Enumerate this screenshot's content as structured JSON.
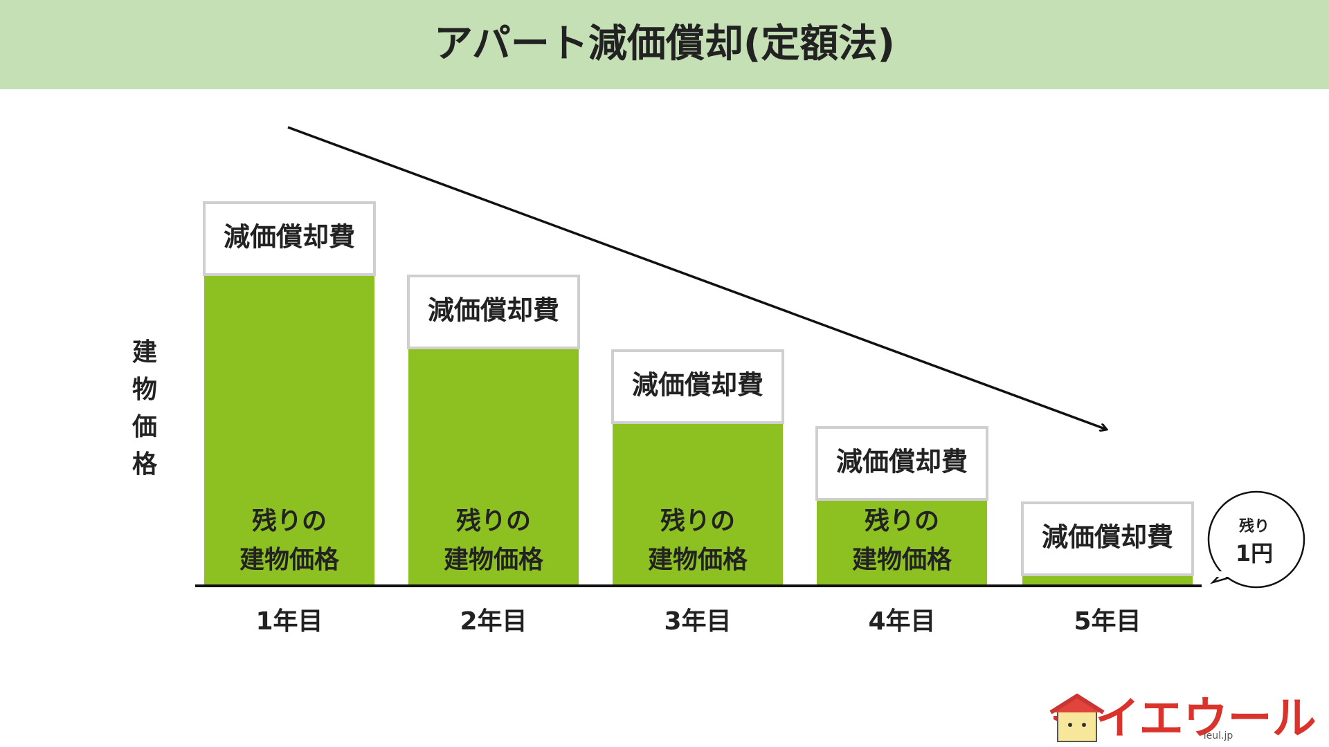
{
  "header": {
    "title": "アパート減価償却(定額法)"
  },
  "y_label": [
    "建",
    "物",
    "価",
    "格"
  ],
  "columns": [
    {
      "label": "1年目",
      "top_label": "減価償却費",
      "bottom_lines": [
        "残りの",
        "建物価格"
      ]
    },
    {
      "label": "2年目",
      "top_label": "減価償却費",
      "bottom_lines": [
        "残りの",
        "建物価格"
      ]
    },
    {
      "label": "3年目",
      "top_label": "減価償却費",
      "bottom_lines": [
        "残りの",
        "建物価格"
      ]
    },
    {
      "label": "4年目",
      "top_label": "減価償却費",
      "bottom_lines": [
        "残りの",
        "建物価格"
      ]
    },
    {
      "label": "5年目",
      "top_label": "減価償却費"
    }
  ],
  "bubble": {
    "line1": "残り",
    "line2": "1円"
  },
  "logo": {
    "name": "イエウール",
    "domain": "ieul.jp"
  }
}
